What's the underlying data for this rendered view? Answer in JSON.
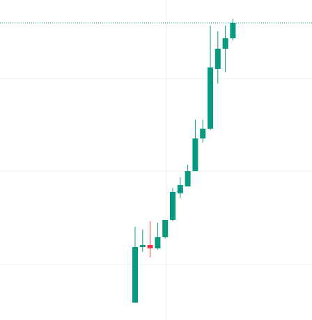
{
  "chart_data": {
    "type": "candlestick",
    "categories": [
      null,
      null,
      null,
      null,
      null,
      null,
      null,
      null,
      null,
      null,
      null,
      null,
      null,
      null
    ],
    "open": [
      25,
      105,
      108,
      103,
      119,
      144,
      182,
      192,
      214,
      261,
      275,
      361,
      390,
      405
    ],
    "high": [
      134,
      130,
      142,
      140,
      144,
      190,
      205,
      223,
      288,
      288,
      423,
      415,
      423,
      433
    ],
    "low": [
      25,
      98,
      90,
      101,
      117,
      142,
      175,
      192,
      214,
      255,
      273,
      340,
      356,
      402
    ],
    "close": [
      105,
      108,
      103,
      119,
      144,
      184,
      194,
      214,
      261,
      275,
      363,
      390,
      405,
      427
    ],
    "up_color": "#089981",
    "down_color": "#f23645",
    "ylim": [
      0,
      460
    ],
    "yticks": [
      80,
      214,
      347
    ],
    "grid": true,
    "last_price_line": true
  }
}
